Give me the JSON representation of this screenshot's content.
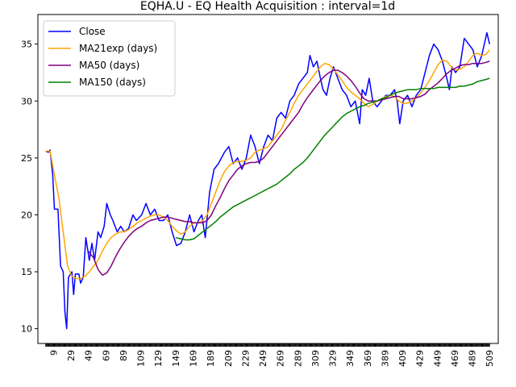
{
  "chart_data": {
    "type": "line",
    "title": "EQHA.U - EQ Health Acquisition : interval=1d",
    "xlabel": "",
    "ylabel": "",
    "xlim": [
      -9,
      519
    ],
    "ylim": [
      8.7,
      37.6
    ],
    "yticks": [
      10,
      15,
      20,
      25,
      30,
      35
    ],
    "xticks": [
      9,
      29,
      49,
      69,
      89,
      109,
      129,
      149,
      169,
      189,
      209,
      229,
      249,
      269,
      289,
      309,
      329,
      349,
      369,
      389,
      409,
      429,
      449,
      469,
      489,
      509
    ],
    "x_range": [
      0,
      509
    ],
    "grid": false,
    "legend_position": "top-left",
    "series": [
      {
        "name": "Close",
        "color": "#0000ff",
        "x": [
          0,
          3,
          5,
          8,
          10,
          14,
          17,
          20,
          22,
          24,
          26,
          30,
          32,
          34,
          38,
          40,
          43,
          46,
          50,
          53,
          56,
          60,
          63,
          67,
          70,
          74,
          77,
          82,
          86,
          90,
          95,
          100,
          104,
          110,
          115,
          120,
          125,
          130,
          135,
          140,
          145,
          150,
          155,
          160,
          165,
          170,
          175,
          179,
          183,
          188,
          193,
          198,
          205,
          210,
          215,
          220,
          225,
          230,
          235,
          240,
          245,
          250,
          255,
          260,
          265,
          270,
          275,
          280,
          285,
          290,
          295,
          300,
          303,
          307,
          311,
          315,
          318,
          322,
          326,
          330,
          335,
          340,
          345,
          350,
          355,
          360,
          363,
          367,
          371,
          375,
          380,
          385,
          390,
          395,
          400,
          403,
          406,
          410,
          415,
          420,
          425,
          430,
          435,
          440,
          445,
          450,
          455,
          460,
          463,
          466,
          470,
          475,
          480,
          485,
          490,
          495,
          500,
          503,
          506,
          509
        ],
        "values": [
          25.6,
          25.5,
          25.7,
          23.5,
          20.5,
          20.5,
          15.5,
          15.0,
          11.5,
          10.0,
          14.5,
          15.0,
          13.0,
          14.8,
          14.8,
          14.0,
          14.5,
          18.0,
          16.0,
          17.5,
          16.0,
          18.5,
          18.0,
          19.0,
          21.0,
          20.0,
          19.5,
          18.5,
          19.0,
          18.5,
          18.8,
          20.0,
          19.5,
          20.0,
          21.0,
          20.0,
          20.5,
          19.5,
          19.5,
          20.0,
          18.5,
          17.3,
          17.5,
          18.5,
          20.0,
          18.5,
          19.5,
          20.0,
          18.0,
          22.0,
          24.0,
          24.5,
          25.5,
          26.0,
          24.5,
          25.0,
          24.0,
          25.0,
          27.0,
          26.0,
          24.5,
          26.0,
          27.0,
          26.5,
          28.5,
          29.0,
          28.5,
          30.0,
          30.5,
          31.5,
          32.0,
          32.5,
          34.0,
          33.0,
          33.5,
          32.0,
          31.0,
          30.5,
          32.0,
          33.0,
          32.0,
          31.0,
          30.5,
          29.5,
          30.0,
          28.0,
          31.0,
          30.5,
          32.0,
          30.0,
          29.5,
          30.0,
          30.5,
          30.5,
          31.0,
          30.0,
          28.0,
          30.0,
          30.5,
          29.5,
          30.5,
          31.0,
          32.5,
          34.0,
          35.0,
          34.5,
          33.5,
          32.0,
          31.0,
          33.0,
          32.5,
          33.0,
          35.5,
          35.0,
          34.5,
          33.0,
          34.0,
          35.0,
          36.0,
          35.0
        ]
      },
      {
        "name": "MA21exp (days)",
        "color": "#ffa500",
        "x": [
          0,
          5,
          10,
          15,
          20,
          25,
          30,
          35,
          40,
          45,
          50,
          55,
          60,
          65,
          70,
          75,
          80,
          85,
          90,
          95,
          100,
          105,
          110,
          115,
          120,
          125,
          130,
          135,
          140,
          145,
          150,
          155,
          160,
          165,
          170,
          175,
          180,
          185,
          190,
          195,
          200,
          205,
          210,
          215,
          220,
          225,
          230,
          235,
          240,
          245,
          250,
          255,
          260,
          265,
          270,
          275,
          280,
          285,
          290,
          295,
          300,
          305,
          310,
          315,
          320,
          325,
          330,
          335,
          340,
          345,
          350,
          355,
          360,
          365,
          370,
          375,
          380,
          385,
          390,
          395,
          400,
          405,
          410,
          415,
          420,
          425,
          430,
          435,
          440,
          445,
          450,
          455,
          460,
          465,
          470,
          475,
          480,
          485,
          490,
          495,
          500,
          505,
          509
        ],
        "values": [
          25.6,
          25.6,
          23.5,
          21.5,
          18.5,
          15.5,
          14.6,
          14.4,
          14.4,
          14.6,
          15.0,
          15.5,
          16.0,
          16.8,
          17.5,
          18.0,
          18.3,
          18.5,
          18.5,
          18.7,
          19.0,
          19.3,
          19.5,
          19.7,
          19.9,
          20.0,
          20.0,
          19.8,
          19.5,
          19.0,
          18.6,
          18.3,
          18.5,
          19.0,
          19.3,
          19.3,
          19.5,
          20.0,
          21.0,
          22.0,
          23.0,
          23.8,
          24.3,
          24.6,
          24.7,
          24.7,
          24.8,
          25.0,
          25.5,
          25.7,
          25.8,
          26.0,
          26.5,
          27.0,
          27.5,
          28.3,
          29.0,
          29.8,
          30.5,
          31.0,
          31.5,
          32.0,
          32.5,
          33.0,
          33.3,
          33.2,
          32.8,
          32.3,
          31.8,
          31.2,
          30.8,
          30.5,
          30.2,
          29.8,
          29.5,
          29.7,
          30.0,
          30.2,
          30.4,
          30.5,
          30.4,
          30.0,
          29.8,
          29.8,
          30.0,
          30.3,
          30.7,
          31.2,
          31.8,
          32.5,
          33.2,
          33.6,
          33.5,
          33.0,
          32.7,
          32.8,
          33.0,
          33.5,
          34.0,
          34.2,
          34.0,
          34.1,
          34.5
        ]
      },
      {
        "name": "MA50 (days)",
        "color": "#800080",
        "x": [
          49,
          55,
          60,
          65,
          70,
          75,
          80,
          85,
          90,
          95,
          100,
          105,
          110,
          115,
          120,
          125,
          130,
          135,
          140,
          145,
          150,
          155,
          160,
          165,
          170,
          175,
          180,
          185,
          190,
          195,
          200,
          205,
          210,
          215,
          220,
          225,
          230,
          235,
          240,
          245,
          250,
          255,
          260,
          265,
          270,
          275,
          280,
          285,
          290,
          295,
          300,
          305,
          310,
          315,
          320,
          325,
          330,
          335,
          340,
          345,
          350,
          355,
          360,
          365,
          370,
          375,
          380,
          385,
          390,
          395,
          400,
          405,
          410,
          415,
          420,
          425,
          430,
          435,
          440,
          445,
          450,
          455,
          460,
          465,
          470,
          475,
          480,
          485,
          490,
          495,
          500,
          505,
          509
        ],
        "values": [
          16.8,
          16.2,
          15.2,
          14.7,
          14.9,
          15.5,
          16.3,
          17.0,
          17.6,
          18.1,
          18.5,
          18.8,
          19.0,
          19.3,
          19.5,
          19.6,
          19.7,
          19.8,
          19.8,
          19.7,
          19.6,
          19.5,
          19.4,
          19.4,
          19.3,
          19.3,
          19.3,
          19.5,
          20.0,
          20.8,
          21.5,
          22.3,
          23.0,
          23.5,
          24.0,
          24.3,
          24.5,
          24.6,
          24.6,
          24.7,
          25.0,
          25.5,
          26.0,
          26.5,
          27.0,
          27.5,
          28.0,
          28.5,
          29.0,
          29.7,
          30.3,
          30.8,
          31.3,
          31.8,
          32.2,
          32.5,
          32.7,
          32.7,
          32.5,
          32.2,
          31.8,
          31.3,
          30.7,
          30.2,
          30.0,
          30.0,
          30.0,
          30.1,
          30.2,
          30.3,
          30.4,
          30.4,
          30.2,
          30.2,
          30.2,
          30.3,
          30.4,
          30.6,
          31.0,
          31.3,
          31.6,
          32.0,
          32.4,
          32.7,
          32.9,
          33.1,
          33.2,
          33.2,
          33.3,
          33.3,
          33.3,
          33.4,
          33.5
        ]
      },
      {
        "name": "MA150 (days)",
        "color": "#008000",
        "x": [
          149,
          155,
          160,
          165,
          170,
          175,
          180,
          185,
          190,
          195,
          200,
          205,
          210,
          215,
          220,
          225,
          230,
          235,
          240,
          245,
          250,
          255,
          260,
          265,
          270,
          275,
          280,
          285,
          290,
          295,
          300,
          305,
          310,
          315,
          320,
          325,
          330,
          335,
          340,
          345,
          350,
          355,
          360,
          365,
          370,
          375,
          380,
          385,
          390,
          395,
          400,
          405,
          410,
          415,
          420,
          425,
          430,
          435,
          440,
          445,
          450,
          455,
          460,
          465,
          470,
          475,
          480,
          485,
          490,
          495,
          500,
          505,
          509
        ],
        "values": [
          18.0,
          17.9,
          17.8,
          17.8,
          17.9,
          18.2,
          18.5,
          18.8,
          19.1,
          19.4,
          19.8,
          20.1,
          20.4,
          20.7,
          20.9,
          21.1,
          21.3,
          21.5,
          21.7,
          21.9,
          22.1,
          22.3,
          22.5,
          22.7,
          23.0,
          23.3,
          23.6,
          24.0,
          24.3,
          24.6,
          25.0,
          25.5,
          26.0,
          26.5,
          27.0,
          27.4,
          27.8,
          28.2,
          28.6,
          28.9,
          29.1,
          29.3,
          29.5,
          29.6,
          29.8,
          29.9,
          30.0,
          30.2,
          30.3,
          30.5,
          30.7,
          30.8,
          30.9,
          31.0,
          31.0,
          31.0,
          31.1,
          31.1,
          31.1,
          31.1,
          31.2,
          31.2,
          31.2,
          31.2,
          31.2,
          31.3,
          31.3,
          31.4,
          31.5,
          31.7,
          31.8,
          31.9,
          32.0
        ]
      }
    ]
  }
}
